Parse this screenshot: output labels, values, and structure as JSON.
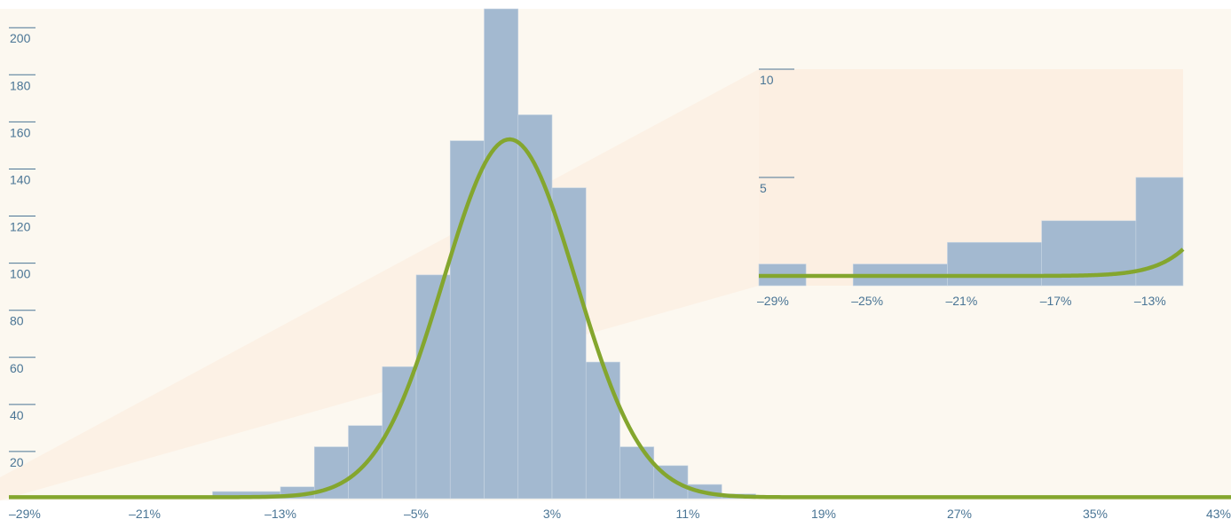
{
  "colors": {
    "background": "#fcf8f0",
    "inset_background": "#fcefe2",
    "bar": "#a3b9d0",
    "bar_edge": "#c8d6e3",
    "curve": "#84a62e",
    "axis_text": "#4a7595"
  },
  "chart_data": [
    {
      "type": "bar",
      "title": "",
      "xlabel": "",
      "ylabel": "",
      "x_tick_labels": [
        "–29%",
        "–21%",
        "–13%",
        "–5%",
        "3%",
        "11%",
        "19%",
        "27%",
        "35%",
        "43%"
      ],
      "y_tick_labels": [
        "20",
        "40",
        "60",
        "80",
        "100",
        "120",
        "140",
        "160",
        "180",
        "200"
      ],
      "x_ticks": [
        -29,
        -21,
        -13,
        -5,
        3,
        11,
        19,
        27,
        35,
        43
      ],
      "y_ticks": [
        20,
        40,
        60,
        80,
        100,
        120,
        140,
        160,
        180,
        200
      ],
      "xlim": [
        -29,
        43
      ],
      "ylim": [
        0,
        208
      ],
      "bin_width": 2,
      "bins": [
        {
          "x0": -21,
          "x1": -17,
          "value": 1
        },
        {
          "x0": -17,
          "x1": -13,
          "value": 3
        },
        {
          "x0": -13,
          "x1": -11,
          "value": 5
        },
        {
          "x0": -11,
          "x1": -9,
          "value": 22
        },
        {
          "x0": -9,
          "x1": -7,
          "value": 31
        },
        {
          "x0": -7,
          "x1": -5,
          "value": 56
        },
        {
          "x0": -5,
          "x1": -3,
          "value": 95
        },
        {
          "x0": -3,
          "x1": -1,
          "value": 152
        },
        {
          "x0": -1,
          "x1": 1,
          "value": 208
        },
        {
          "x0": 1,
          "x1": 3,
          "value": 163
        },
        {
          "x0": 3,
          "x1": 5,
          "value": 132
        },
        {
          "x0": 5,
          "x1": 7,
          "value": 58
        },
        {
          "x0": 7,
          "x1": 9,
          "value": 22
        },
        {
          "x0": 9,
          "x1": 11,
          "value": 14
        },
        {
          "x0": 11,
          "x1": 13,
          "value": 6
        },
        {
          "x0": 13,
          "x1": 15,
          "value": 2
        },
        {
          "x0": 39,
          "x1": 41,
          "value": 1
        }
      ],
      "curve": {
        "type": "normal",
        "mean": 0.5,
        "sd": 3.9,
        "peak": 152
      }
    },
    {
      "type": "bar",
      "title": "",
      "xlabel": "",
      "ylabel": "",
      "x_tick_labels": [
        "–29%",
        "–25%",
        "–21%",
        "–17%",
        "–13%"
      ],
      "y_tick_labels": [
        "5",
        "10"
      ],
      "x_ticks": [
        -29,
        -25,
        -21,
        -17,
        -13
      ],
      "y_ticks": [
        5,
        10
      ],
      "xlim": [
        -29.6,
        -11.6
      ],
      "ylim": [
        0,
        10
      ],
      "bins": [
        {
          "x0": -29.6,
          "x1": -27.6,
          "value": 1
        },
        {
          "x0": -25.6,
          "x1": -21.6,
          "value": 1
        },
        {
          "x0": -21.6,
          "x1": -17.6,
          "value": 2
        },
        {
          "x0": -17.6,
          "x1": -13.6,
          "value": 3
        },
        {
          "x0": -13.6,
          "x1": -11.6,
          "value": 5
        }
      ],
      "curve": {
        "type": "normal",
        "mean": 0.5,
        "sd": 3.9,
        "peak": 152
      }
    }
  ]
}
